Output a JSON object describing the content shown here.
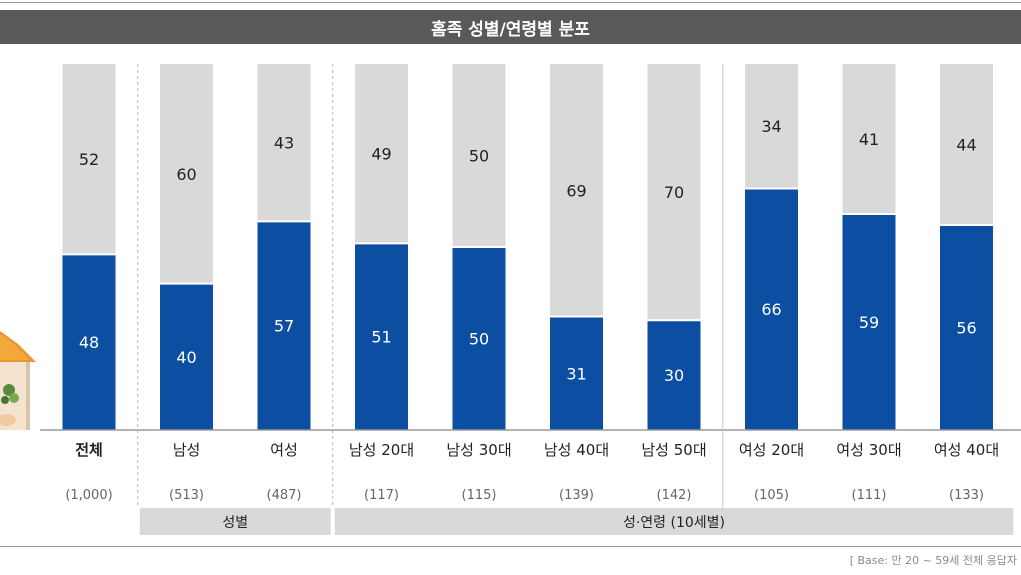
{
  "title": "홈족 성별/연령별 분포",
  "base_note": "[ Base: 만 20 ~ 59세 전체 응답자",
  "colors": {
    "top": "#d9d9d9",
    "bottom": "#0b4ea2",
    "title_bg": "#595959",
    "group_bg": "#d9d9d9"
  },
  "chart_data": {
    "type": "bar",
    "stacked": true,
    "percent": true,
    "categories": [
      "전체",
      "남성",
      "여성",
      "남성 20대",
      "남성 30대",
      "남성 40대",
      "남성 50대",
      "여성 20대",
      "여성 30대",
      "여성 40대"
    ],
    "bases": [
      "(1,000)",
      "(513)",
      "(487)",
      "(117)",
      "(115)",
      "(139)",
      "(142)",
      "(105)",
      "(111)",
      "(133)"
    ],
    "series": [
      {
        "values": [
          48,
          40,
          57,
          51,
          50,
          31,
          30,
          66,
          59,
          56
        ],
        "color": "#0b4ea2"
      },
      {
        "values": [
          52,
          60,
          43,
          49,
          50,
          69,
          70,
          34,
          41,
          44
        ],
        "color": "#d9d9d9"
      }
    ],
    "groups": [
      {
        "label": "성별",
        "categories": [
          1,
          2
        ]
      },
      {
        "label": "성·연령 (10세별)",
        "categories": [
          3,
          4,
          5,
          6,
          7,
          8,
          9
        ]
      }
    ],
    "ylim": [
      0,
      100
    ],
    "grid": false,
    "legend": "none"
  }
}
